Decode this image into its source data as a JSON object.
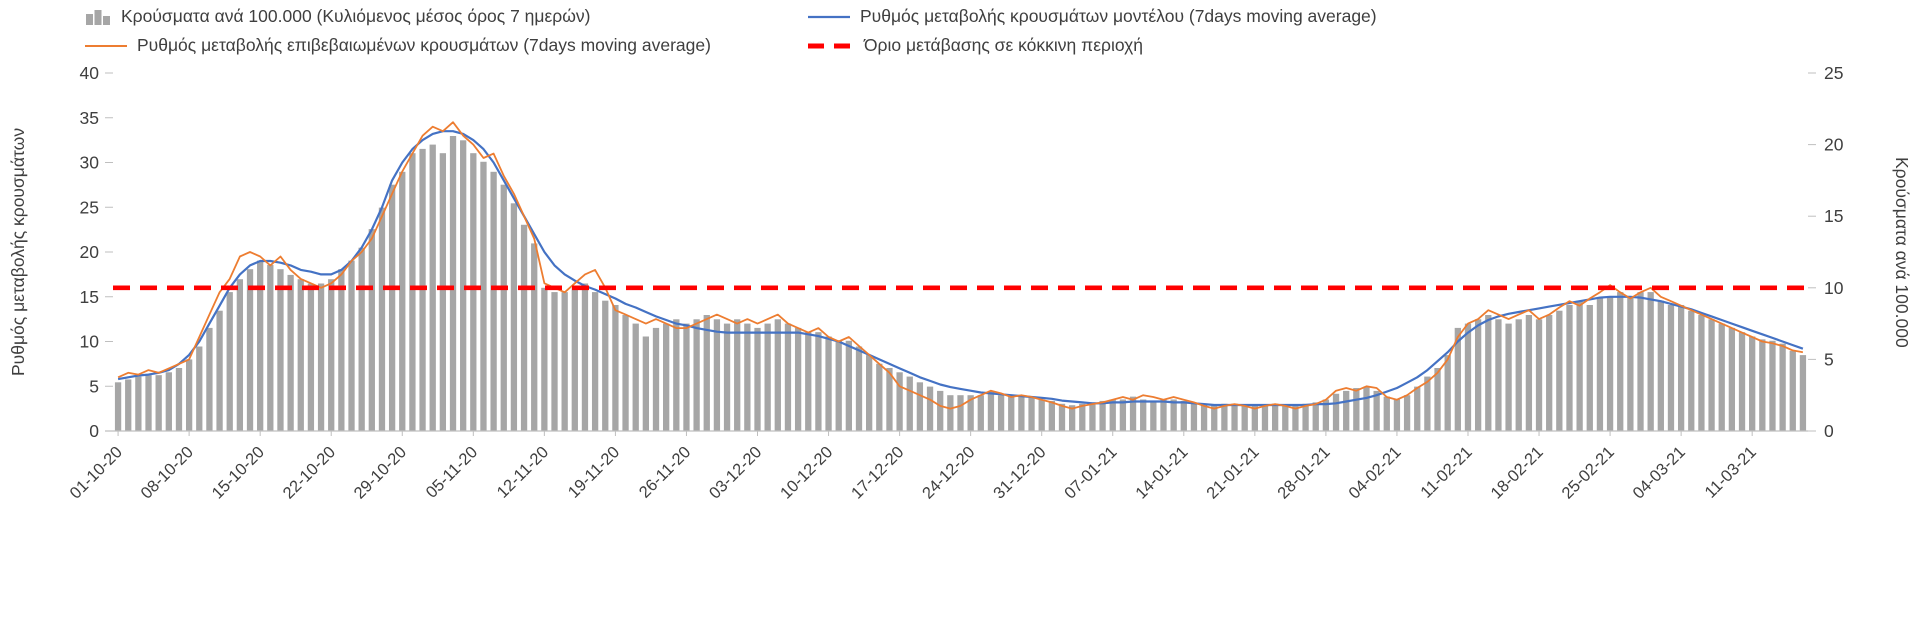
{
  "chart_data": {
    "type": "combo",
    "tick_interval_days": 7,
    "n_points": 167,
    "x_tick_labels": [
      "01-10-20",
      "08-10-20",
      "15-10-20",
      "22-10-20",
      "29-10-20",
      "05-11-20",
      "12-11-20",
      "19-11-20",
      "26-11-20",
      "03-12-20",
      "10-12-20",
      "17-12-20",
      "24-12-20",
      "31-12-20",
      "07-01-21",
      "14-01-21",
      "21-01-21",
      "28-01-21",
      "04-02-21",
      "11-02-21",
      "18-02-21",
      "25-02-21",
      "04-03-21",
      "11-03-21"
    ],
    "left_axis": {
      "label": "Ρυθμός μεταβολής κρουσμάτων",
      "min": 0,
      "max": 40,
      "tick_step": 5,
      "ticks": [
        0,
        5,
        10,
        15,
        20,
        25,
        30,
        35,
        40
      ]
    },
    "right_axis": {
      "label": "Κρούσματα ανά 100.000",
      "min": 0,
      "max": 25,
      "tick_step": 5,
      "ticks": [
        0,
        5,
        10,
        15,
        20,
        25
      ]
    },
    "threshold": {
      "value": 16,
      "axis": "left",
      "label": "Όριο μετάβασης σε κόκκινη περιοχή",
      "color": "#ff0000"
    },
    "colors": {
      "bar": "#a6a6a6",
      "model_line": "#4472c4",
      "confirmed_line": "#ed7d31",
      "threshold": "#ff0000",
      "axis_line": "#bfbfbf",
      "text": "#3f3f3f"
    },
    "series": [
      {
        "name": "Κρούσματα ανά 100.000 (Κυλιόμενος μέσος όρος 7 ημερών)",
        "type": "bar",
        "axis": "right",
        "color": "#a6a6a6",
        "values": [
          3.4,
          3.6,
          3.8,
          3.9,
          3.9,
          4.1,
          4.4,
          5.0,
          5.9,
          7.2,
          8.4,
          9.7,
          10.6,
          11.3,
          11.9,
          11.6,
          11.3,
          10.9,
          10.6,
          10.3,
          10.3,
          10.6,
          11.3,
          11.9,
          12.8,
          14.1,
          15.6,
          17.2,
          18.1,
          19.4,
          19.7,
          20.0,
          19.4,
          20.6,
          20.3,
          19.4,
          18.8,
          18.1,
          17.2,
          15.9,
          14.4,
          13.1,
          10.0,
          9.7,
          9.7,
          10.0,
          10.3,
          9.7,
          9.1,
          8.8,
          8.1,
          7.5,
          6.6,
          7.2,
          7.5,
          7.8,
          7.5,
          7.8,
          8.1,
          7.8,
          7.5,
          7.8,
          7.5,
          7.2,
          7.5,
          7.8,
          7.5,
          7.2,
          6.9,
          6.9,
          6.6,
          6.3,
          6.3,
          5.9,
          5.3,
          4.7,
          4.4,
          4.1,
          3.8,
          3.4,
          3.1,
          2.8,
          2.5,
          2.5,
          2.5,
          2.5,
          2.8,
          2.5,
          2.4,
          2.5,
          2.4,
          2.2,
          2.1,
          1.9,
          1.8,
          1.9,
          2.0,
          2.1,
          2.2,
          2.2,
          2.4,
          2.2,
          2.1,
          2.2,
          2.2,
          2.1,
          1.9,
          1.8,
          1.8,
          1.9,
          1.9,
          1.8,
          1.8,
          1.8,
          1.9,
          1.8,
          1.8,
          1.9,
          2.0,
          2.2,
          2.6,
          2.8,
          3.0,
          3.1,
          2.8,
          2.4,
          2.2,
          2.5,
          3.1,
          3.8,
          4.4,
          5.3,
          7.2,
          7.5,
          7.8,
          8.1,
          7.8,
          7.5,
          7.8,
          8.1,
          7.8,
          8.1,
          8.4,
          8.8,
          9.1,
          8.8,
          9.3,
          9.4,
          9.7,
          9.3,
          9.7,
          9.7,
          9.1,
          8.8,
          8.8,
          8.4,
          8.1,
          7.8,
          7.5,
          7.2,
          6.9,
          6.6,
          6.4,
          6.3,
          6.1,
          5.6,
          5.3
        ]
      },
      {
        "name": "Ρυθμός μεταβολής κρουσμάτων μοντέλου (7days moving average)",
        "type": "line",
        "axis": "left",
        "color": "#4472c4",
        "width": 2.2,
        "values": [
          5.8,
          6.0,
          6.2,
          6.3,
          6.5,
          6.8,
          7.5,
          8.5,
          10.0,
          12.0,
          14.0,
          16.0,
          17.5,
          18.5,
          19.0,
          19.0,
          18.8,
          18.5,
          18.0,
          17.8,
          17.5,
          17.5,
          18.0,
          19.0,
          20.5,
          22.5,
          25.0,
          28.0,
          30.0,
          31.5,
          32.5,
          33.2,
          33.5,
          33.5,
          33.2,
          32.5,
          31.5,
          30.0,
          28.0,
          26.0,
          24.0,
          22.0,
          20.0,
          18.5,
          17.5,
          16.8,
          16.2,
          15.8,
          15.3,
          14.8,
          14.2,
          13.8,
          13.3,
          12.8,
          12.4,
          12.0,
          11.8,
          11.5,
          11.3,
          11.1,
          11.0,
          11.0,
          11.0,
          11.0,
          11.0,
          11.0,
          11.0,
          11.0,
          10.8,
          10.6,
          10.3,
          10.0,
          9.5,
          9.0,
          8.5,
          8.0,
          7.5,
          7.0,
          6.5,
          6.0,
          5.6,
          5.2,
          4.9,
          4.7,
          4.5,
          4.3,
          4.2,
          4.1,
          4.0,
          3.9,
          3.8,
          3.7,
          3.6,
          3.4,
          3.3,
          3.2,
          3.1,
          3.1,
          3.2,
          3.2,
          3.3,
          3.3,
          3.3,
          3.3,
          3.2,
          3.2,
          3.1,
          3.0,
          2.9,
          2.9,
          2.9,
          2.9,
          2.9,
          2.9,
          2.9,
          2.9,
          2.9,
          2.9,
          3.0,
          3.0,
          3.1,
          3.3,
          3.5,
          3.7,
          4.0,
          4.4,
          4.8,
          5.4,
          6.0,
          6.8,
          7.8,
          8.8,
          10.0,
          11.0,
          11.8,
          12.4,
          12.8,
          13.1,
          13.3,
          13.5,
          13.7,
          13.9,
          14.1,
          14.3,
          14.5,
          14.7,
          14.9,
          15.0,
          15.0,
          15.0,
          14.9,
          14.7,
          14.5,
          14.2,
          13.9,
          13.6,
          13.2,
          12.8,
          12.4,
          12.0,
          11.6,
          11.2,
          10.8,
          10.4,
          10.0,
          9.6,
          9.2
        ]
      },
      {
        "name": "Ρυθμός μεταβολής επιβεβαιωμένων κρουσμάτων (7days moving average)",
        "type": "line",
        "axis": "left",
        "color": "#ed7d31",
        "width": 1.8,
        "values": [
          6.0,
          6.5,
          6.3,
          6.8,
          6.5,
          7.0,
          7.5,
          8.0,
          10.5,
          13.0,
          15.5,
          17.0,
          19.5,
          20.0,
          19.5,
          18.5,
          19.5,
          18.0,
          17.0,
          16.5,
          16.0,
          16.5,
          17.5,
          19.0,
          20.0,
          21.5,
          24.0,
          26.5,
          29.0,
          31.0,
          33.0,
          34.0,
          33.5,
          34.5,
          33.0,
          32.0,
          30.5,
          31.0,
          28.5,
          26.5,
          24.0,
          21.5,
          16.5,
          16.0,
          15.5,
          16.5,
          17.5,
          18.0,
          16.0,
          13.5,
          13.0,
          12.5,
          12.0,
          12.5,
          12.0,
          11.5,
          11.5,
          12.0,
          12.5,
          13.0,
          12.5,
          12.0,
          12.5,
          12.0,
          12.5,
          13.0,
          12.0,
          11.5,
          11.0,
          11.5,
          10.5,
          10.0,
          10.5,
          9.5,
          8.5,
          7.5,
          6.5,
          5.0,
          4.5,
          4.0,
          3.5,
          2.8,
          2.5,
          2.8,
          3.5,
          4.0,
          4.5,
          4.2,
          3.8,
          4.0,
          3.8,
          3.5,
          3.2,
          2.8,
          2.5,
          2.8,
          3.0,
          3.2,
          3.5,
          3.8,
          3.5,
          4.0,
          3.8,
          3.5,
          3.8,
          3.5,
          3.2,
          2.8,
          2.5,
          2.8,
          3.0,
          2.8,
          2.5,
          2.8,
          3.0,
          2.8,
          2.5,
          2.8,
          3.0,
          3.5,
          4.5,
          4.8,
          4.5,
          5.0,
          4.8,
          3.8,
          3.5,
          4.0,
          4.8,
          5.5,
          6.5,
          8.0,
          10.5,
          12.0,
          12.5,
          13.5,
          13.0,
          12.5,
          13.0,
          13.5,
          12.5,
          13.0,
          13.8,
          14.5,
          14.0,
          14.8,
          15.5,
          16.3,
          15.5,
          14.8,
          15.5,
          16.0,
          15.0,
          14.5,
          14.0,
          13.5,
          13.0,
          12.5,
          12.0,
          11.5,
          11.0,
          10.5,
          10.0,
          9.8,
          9.5,
          9.0,
          8.8
        ]
      }
    ]
  }
}
